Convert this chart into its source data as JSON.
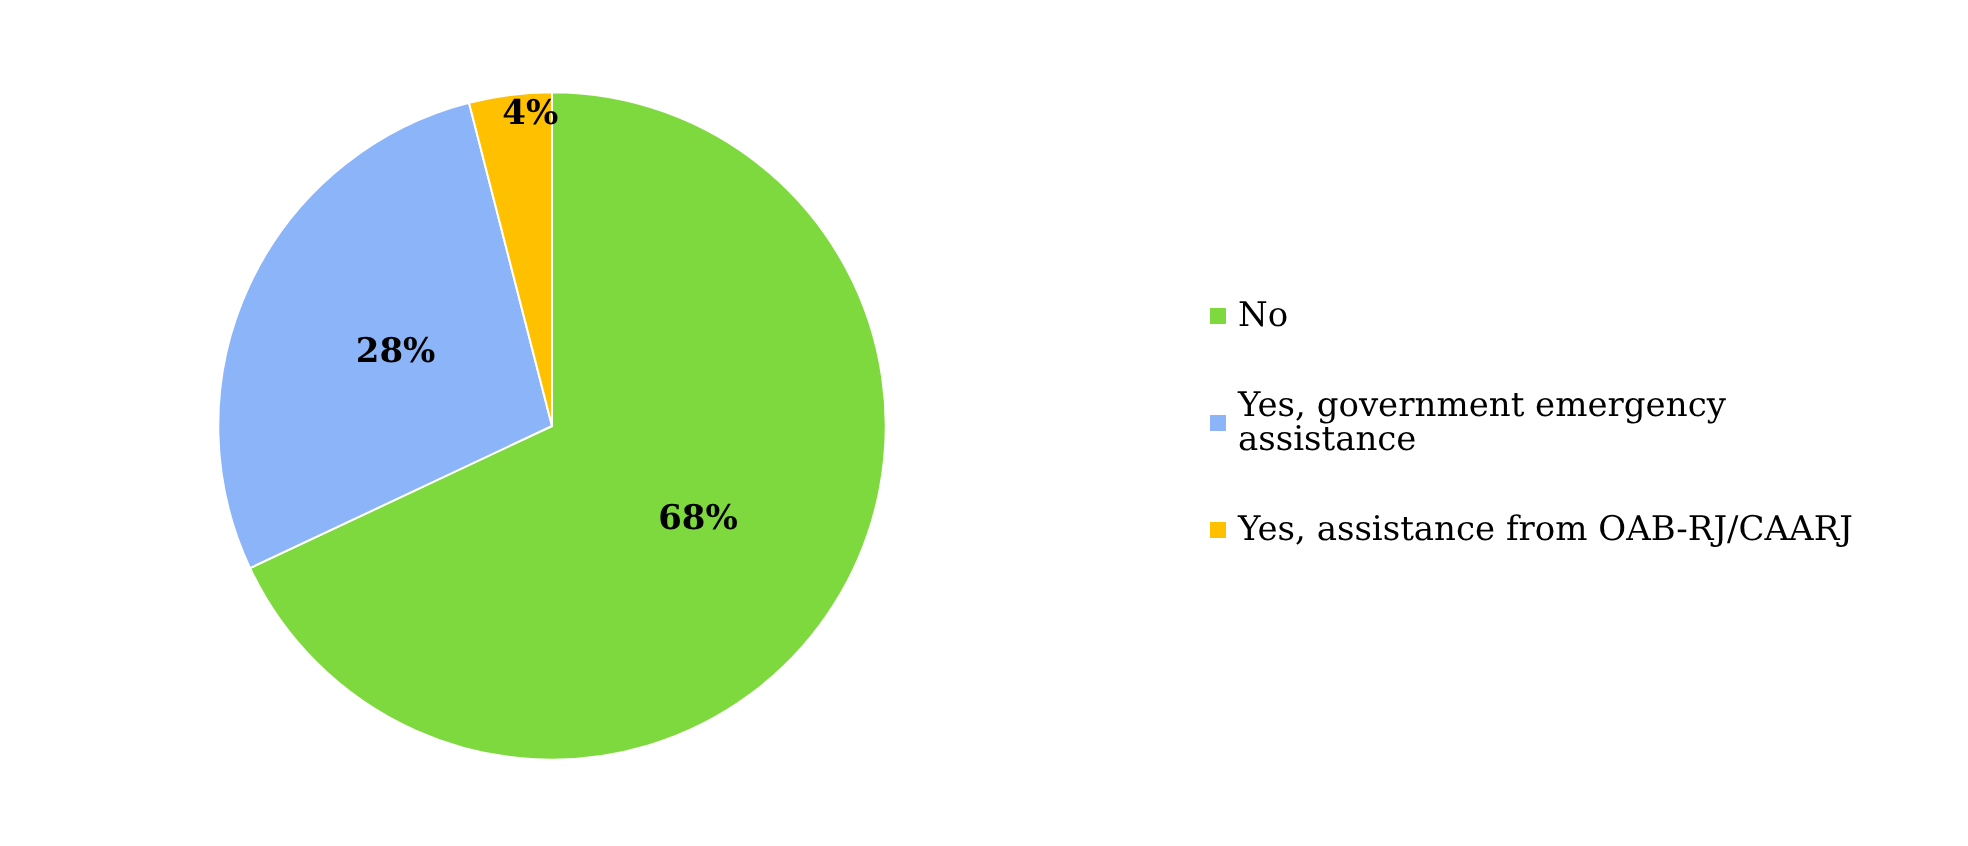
{
  "chart_data": {
    "type": "pie",
    "categories": [
      "No",
      "Yes, government emergency assistance",
      "Yes, assistance from OAB-RJ/CAARJ"
    ],
    "values": [
      68,
      28,
      4
    ],
    "colors": [
      "#7ed93f",
      "#8cb4f8",
      "#ffc000"
    ],
    "legend": "right",
    "value_labels": [
      "68%",
      "28%",
      "4%"
    ]
  }
}
